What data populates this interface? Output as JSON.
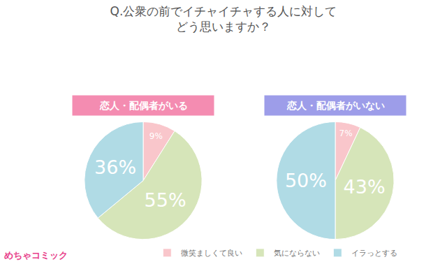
{
  "title": [
    "Q.公衆の前でイチャイチャする人に対して",
    "どう思いますか？"
  ],
  "logo": "めちゃコミック",
  "legend": "bottom",
  "chart_data": [
    {
      "type": "pie",
      "title": "恋人・配偶者がいる",
      "categories": [
        "微笑ましくて良い",
        "気にならない",
        "イラっとする"
      ],
      "values": [
        9,
        55,
        36
      ],
      "value_labels": [
        "9%",
        "55%",
        "36%"
      ],
      "colors": [
        "#f9c6cb",
        "#d6e5b9",
        "#b0dbe5"
      ],
      "data_labels": true
    },
    {
      "type": "pie",
      "title": "恋人・配偶者がいない",
      "categories": [
        "微笑ましくて良い",
        "気にならない",
        "イラっとする"
      ],
      "values": [
        7,
        43,
        50
      ],
      "value_labels": [
        "7%",
        "43%",
        "50%"
      ],
      "colors": [
        "#f9c6cb",
        "#d6e5b9",
        "#b0dbe5"
      ],
      "data_labels": true
    }
  ]
}
